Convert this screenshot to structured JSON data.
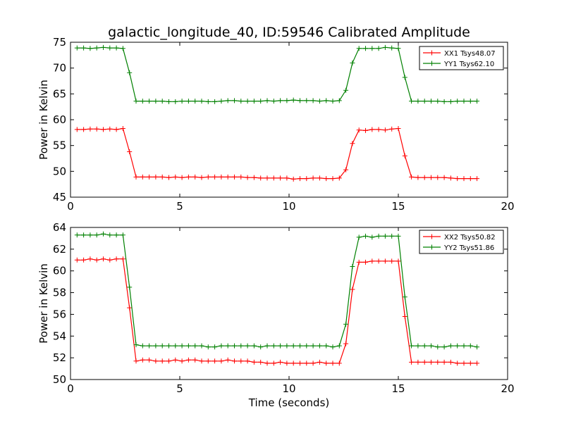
{
  "title": "galactic_longitude_40, ID:59546 Calibrated Amplitude",
  "colors": {
    "red": "#ff0000",
    "green": "#008000"
  },
  "chart_data": [
    {
      "type": "line",
      "title": "galactic_longitude_40, ID:59546 Calibrated Amplitude",
      "xlabel": "",
      "ylabel": "Power in Kelvin",
      "xlim": [
        0,
        20
      ],
      "ylim": [
        45,
        75
      ],
      "xticks": [
        0,
        5,
        10,
        15,
        20
      ],
      "yticks": [
        45,
        50,
        55,
        60,
        65,
        70,
        75
      ],
      "grid": false,
      "legend_position": "top-right",
      "x": [
        0.3,
        0.6,
        0.9,
        1.2,
        1.5,
        1.8,
        2.1,
        2.4,
        2.7,
        3.0,
        3.3,
        3.6,
        3.9,
        4.2,
        4.5,
        4.8,
        5.1,
        5.4,
        5.7,
        6.0,
        6.3,
        6.6,
        6.9,
        7.2,
        7.5,
        7.8,
        8.1,
        8.4,
        8.7,
        9.0,
        9.3,
        9.6,
        9.9,
        10.2,
        10.5,
        10.8,
        11.1,
        11.4,
        11.7,
        12.0,
        12.3,
        12.6,
        12.9,
        13.2,
        13.5,
        13.8,
        14.1,
        14.4,
        14.7,
        15.0,
        15.3,
        15.6,
        15.9,
        16.2,
        16.5,
        16.8,
        17.1,
        17.4,
        17.7,
        18.0,
        18.3,
        18.6
      ],
      "series": [
        {
          "name": "XX1 Tsys48.07",
          "color": "#ff0000",
          "values": [
            58.1,
            58.1,
            58.2,
            58.2,
            58.1,
            58.2,
            58.1,
            58.3,
            53.8,
            48.9,
            48.9,
            48.9,
            48.9,
            48.9,
            48.8,
            48.9,
            48.8,
            48.9,
            48.9,
            48.8,
            48.9,
            48.9,
            48.9,
            48.9,
            48.9,
            48.9,
            48.8,
            48.8,
            48.7,
            48.7,
            48.7,
            48.7,
            48.7,
            48.5,
            48.6,
            48.6,
            48.7,
            48.7,
            48.6,
            48.6,
            48.7,
            50.3,
            55.4,
            58.0,
            57.9,
            58.1,
            58.1,
            58.0,
            58.2,
            58.3,
            53.0,
            48.9,
            48.8,
            48.8,
            48.8,
            48.8,
            48.8,
            48.7,
            48.6,
            48.6,
            48.6,
            48.6
          ]
        },
        {
          "name": "YY1 Tsys62.10",
          "color": "#008000",
          "values": [
            73.9,
            73.9,
            73.8,
            73.9,
            74.0,
            73.9,
            73.9,
            73.8,
            69.1,
            63.6,
            63.6,
            63.6,
            63.6,
            63.6,
            63.5,
            63.5,
            63.6,
            63.6,
            63.6,
            63.6,
            63.5,
            63.5,
            63.6,
            63.7,
            63.7,
            63.6,
            63.6,
            63.6,
            63.6,
            63.7,
            63.6,
            63.7,
            63.7,
            63.8,
            63.7,
            63.7,
            63.7,
            63.6,
            63.7,
            63.6,
            63.7,
            65.7,
            71.0,
            73.8,
            73.8,
            73.8,
            73.8,
            74.0,
            73.9,
            73.8,
            68.2,
            63.6,
            63.6,
            63.6,
            63.6,
            63.6,
            63.5,
            63.5,
            63.6,
            63.6,
            63.6,
            63.6
          ]
        }
      ]
    },
    {
      "type": "line",
      "title": "",
      "xlabel": "Time (seconds)",
      "ylabel": "Power in Kelvin",
      "xlim": [
        0,
        20
      ],
      "ylim": [
        50,
        64
      ],
      "xticks": [
        0,
        5,
        10,
        15,
        20
      ],
      "yticks": [
        50,
        52,
        54,
        56,
        58,
        60,
        62,
        64
      ],
      "grid": false,
      "legend_position": "top-right",
      "x": [
        0.3,
        0.6,
        0.9,
        1.2,
        1.5,
        1.8,
        2.1,
        2.4,
        2.7,
        3.0,
        3.3,
        3.6,
        3.9,
        4.2,
        4.5,
        4.8,
        5.1,
        5.4,
        5.7,
        6.0,
        6.3,
        6.6,
        6.9,
        7.2,
        7.5,
        7.8,
        8.1,
        8.4,
        8.7,
        9.0,
        9.3,
        9.6,
        9.9,
        10.2,
        10.5,
        10.8,
        11.1,
        11.4,
        11.7,
        12.0,
        12.3,
        12.6,
        12.9,
        13.2,
        13.5,
        13.8,
        14.1,
        14.4,
        14.7,
        15.0,
        15.3,
        15.6,
        15.9,
        16.2,
        16.5,
        16.8,
        17.1,
        17.4,
        17.7,
        18.0,
        18.3,
        18.6
      ],
      "series": [
        {
          "name": "XX2 Tsys50.82",
          "color": "#ff0000",
          "values": [
            61.0,
            61.0,
            61.1,
            61.0,
            61.1,
            61.0,
            61.1,
            61.1,
            56.6,
            51.7,
            51.8,
            51.8,
            51.7,
            51.7,
            51.7,
            51.8,
            51.7,
            51.8,
            51.8,
            51.7,
            51.7,
            51.7,
            51.7,
            51.8,
            51.7,
            51.7,
            51.7,
            51.6,
            51.6,
            51.5,
            51.5,
            51.6,
            51.5,
            51.5,
            51.5,
            51.5,
            51.5,
            51.6,
            51.5,
            51.5,
            51.5,
            53.3,
            58.3,
            60.8,
            60.8,
            60.9,
            60.9,
            60.9,
            60.9,
            60.9,
            55.8,
            51.6,
            51.6,
            51.6,
            51.6,
            51.6,
            51.6,
            51.6,
            51.5,
            51.5,
            51.5,
            51.5
          ]
        },
        {
          "name": "YY2 Tsys51.86",
          "color": "#008000",
          "values": [
            63.3,
            63.3,
            63.3,
            63.3,
            63.4,
            63.3,
            63.3,
            63.3,
            58.5,
            53.2,
            53.1,
            53.1,
            53.1,
            53.1,
            53.1,
            53.1,
            53.1,
            53.1,
            53.1,
            53.1,
            53.0,
            53.0,
            53.1,
            53.1,
            53.1,
            53.1,
            53.1,
            53.1,
            53.0,
            53.1,
            53.1,
            53.1,
            53.1,
            53.1,
            53.1,
            53.1,
            53.1,
            53.1,
            53.1,
            53.0,
            53.1,
            55.1,
            60.4,
            63.1,
            63.2,
            63.1,
            63.2,
            63.2,
            63.2,
            63.2,
            57.6,
            53.1,
            53.1,
            53.1,
            53.1,
            53.0,
            53.0,
            53.1,
            53.1,
            53.1,
            53.1,
            53.0
          ]
        }
      ]
    }
  ]
}
